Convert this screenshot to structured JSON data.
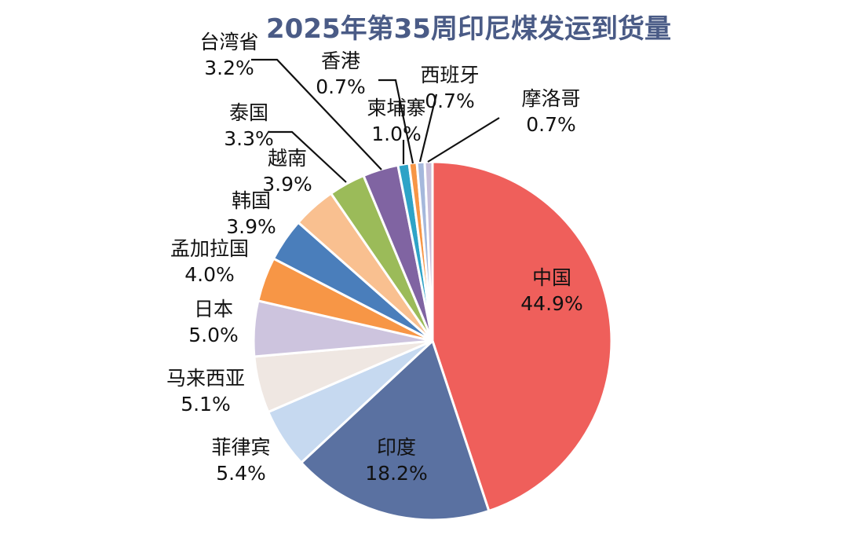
{
  "chart_data": {
    "type": "pie",
    "title": "2025年第35周印尼煤发运到货量",
    "slices": [
      {
        "name": "中国",
        "value": 44.9,
        "label": "44.9%",
        "color": "#ef5f5b"
      },
      {
        "name": "印度",
        "value": 18.2,
        "label": "18.2%",
        "color": "#5a71a1"
      },
      {
        "name": "菲律宾",
        "value": 5.4,
        "label": "5.4%",
        "color": "#c6d9f0"
      },
      {
        "name": "马来西亚",
        "value": 5.1,
        "label": "5.1%",
        "color": "#efe7e2"
      },
      {
        "name": "日本",
        "value": 5.0,
        "label": "5.0%",
        "color": "#cdc4de"
      },
      {
        "name": "孟加拉国",
        "value": 4.0,
        "label": "4.0%",
        "color": "#f79646"
      },
      {
        "name": "韩国",
        "value": 3.9,
        "label": "3.9%",
        "color": "#4a7ebb"
      },
      {
        "name": "越南",
        "value": 3.9,
        "label": "3.9%",
        "color": "#f9c090"
      },
      {
        "name": "泰国",
        "value": 3.3,
        "label": "3.3%",
        "color": "#9bbb59"
      },
      {
        "name": "台湾省",
        "value": 3.2,
        "label": "3.2%",
        "color": "#8064a2"
      },
      {
        "name": "柬埔寨",
        "value": 1.0,
        "label": "1.0%",
        "color": "#2ea3c7"
      },
      {
        "name": "香港",
        "value": 0.7,
        "label": "0.7%",
        "color": "#f79646"
      },
      {
        "name": "西班牙",
        "value": 0.7,
        "label": "0.7%",
        "color": "#a5b8dc"
      },
      {
        "name": "摩洛哥",
        "value": 0.7,
        "label": "0.7%",
        "color": "#c9bdd9"
      }
    ]
  }
}
